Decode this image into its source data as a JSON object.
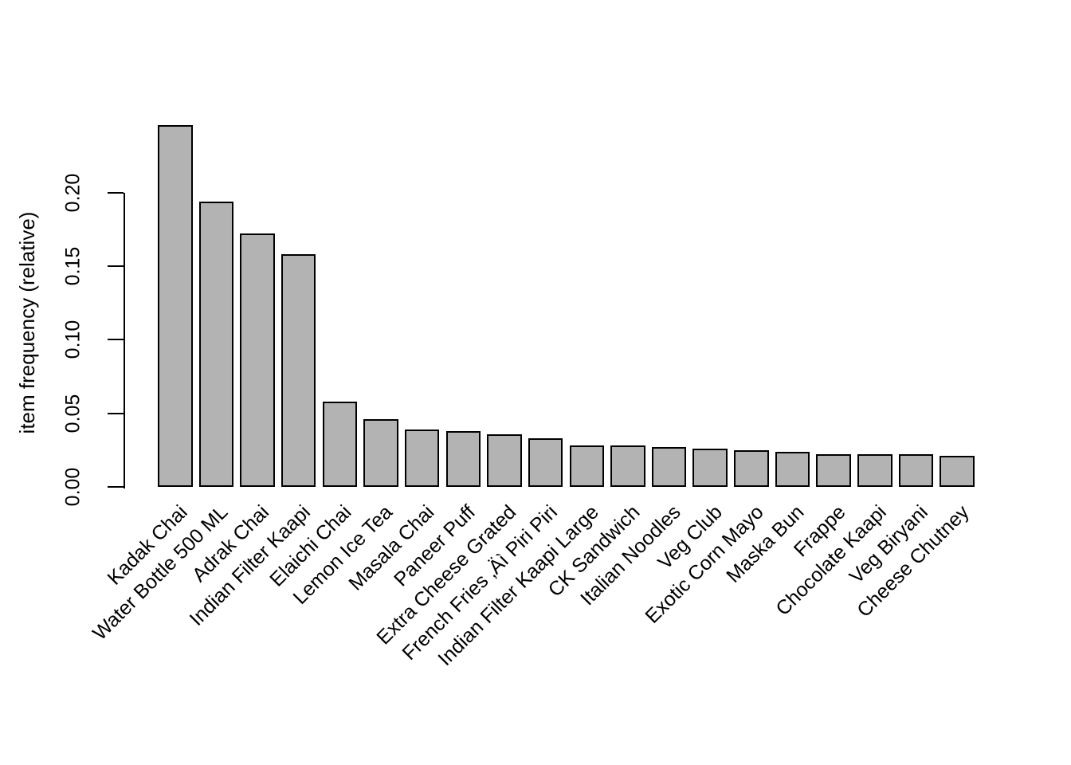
{
  "chart_data": {
    "type": "bar",
    "title": "",
    "xlabel": "",
    "ylabel": "item frequency (relative)",
    "categories": [
      "Kadak Chai",
      "Water Bottle 500 ML",
      "Adrak Chai",
      "Indian Filter Kaapi",
      "Elaichi Chai",
      "Lemon Ice Tea",
      "Masala Chai",
      "Paneer Puff",
      "Extra Cheese Grated",
      "French Fries ‚Äì Piri Piri",
      "Indian Filter Kaapi Large",
      "CK Sandwich",
      "Italian Noodles",
      "Veg Club",
      "Exotic Corn Mayo",
      "Maska Bun",
      "Frappe",
      "Chocolate Kaapi",
      "Veg Biryani",
      "Cheese Chutney"
    ],
    "values": [
      0.246,
      0.194,
      0.172,
      0.158,
      0.058,
      0.046,
      0.039,
      0.038,
      0.036,
      0.033,
      0.028,
      0.028,
      0.027,
      0.026,
      0.025,
      0.024,
      0.022,
      0.022,
      0.022,
      0.021
    ],
    "ylim": [
      0,
      0.2
    ],
    "yticks": [
      0.0,
      0.05,
      0.1,
      0.15,
      0.2
    ],
    "ytick_labels": [
      "0.00",
      "0.05",
      "0.10",
      "0.15",
      "0.20"
    ],
    "grid": false,
    "legend": null,
    "x_label_rotation": -45,
    "bar_fill": "#b3b3b3",
    "bar_border": "#000000",
    "background": "#ffffff"
  }
}
